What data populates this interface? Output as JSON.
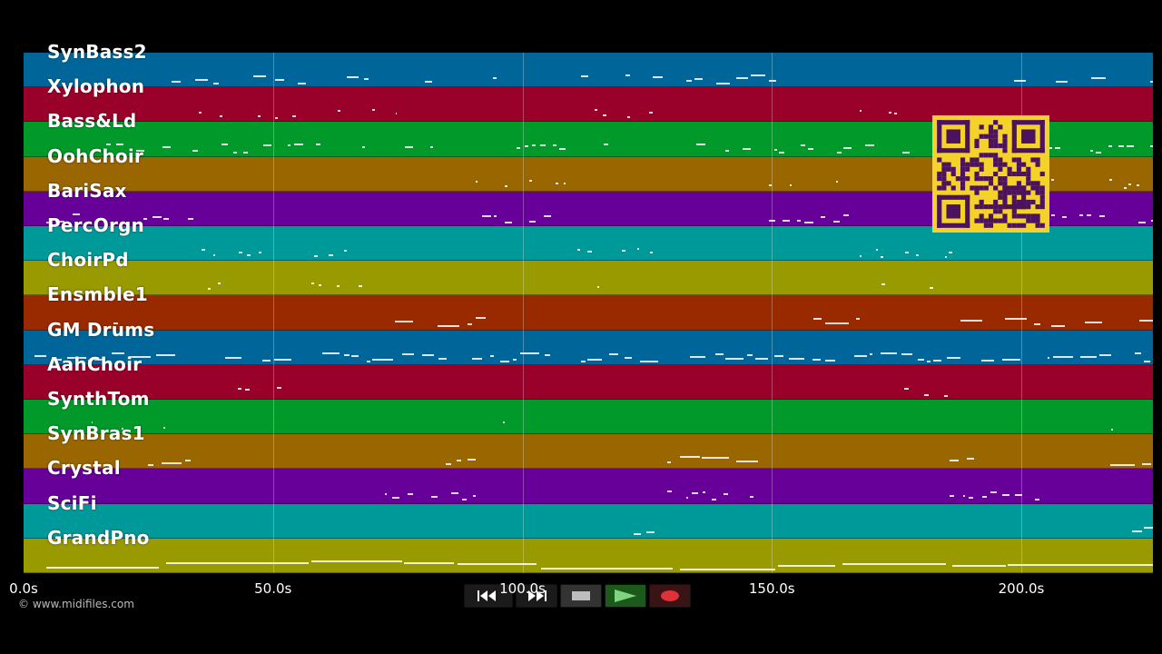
{
  "tracks": [
    {
      "name": "SynBass2",
      "color": "#006699"
    },
    {
      "name": "Xylophon",
      "color": "#99002a"
    },
    {
      "name": "Bass&Ld",
      "color": "#00992a"
    },
    {
      "name": "OohChoir",
      "color": "#996600"
    },
    {
      "name": "BariSax",
      "color": "#660099"
    },
    {
      "name": "PercOrgn",
      "color": "#009999"
    },
    {
      "name": "ChoirPd",
      "color": "#999900"
    },
    {
      "name": "Ensmble1",
      "color": "#992a00"
    },
    {
      "name": "GM Drums",
      "color": "#006699"
    },
    {
      "name": "AahChoir",
      "color": "#99002a"
    },
    {
      "name": "SynthTom",
      "color": "#00992a"
    },
    {
      "name": "SynBras1",
      "color": "#996600"
    },
    {
      "name": "Crystal",
      "color": "#660099"
    },
    {
      "name": "SciFi",
      "color": "#009999"
    },
    {
      "name": "GrandPno",
      "color": "#999900"
    }
  ],
  "timeline": {
    "max_seconds": 226,
    "ticks": [
      {
        "label": "0.0s",
        "seconds": 0
      },
      {
        "label": "50.0s",
        "seconds": 50
      },
      {
        "label": "100.0s",
        "seconds": 100
      },
      {
        "label": "150.0s",
        "seconds": 150
      },
      {
        "label": "200.0s",
        "seconds": 200
      }
    ]
  },
  "copyright": "© www.midifiles.com",
  "transport": {
    "rewind": "rewind-icon",
    "fast_forward": "fast-forward-icon",
    "stop": "stop-icon",
    "play": "play-icon",
    "record": "record-icon"
  }
}
